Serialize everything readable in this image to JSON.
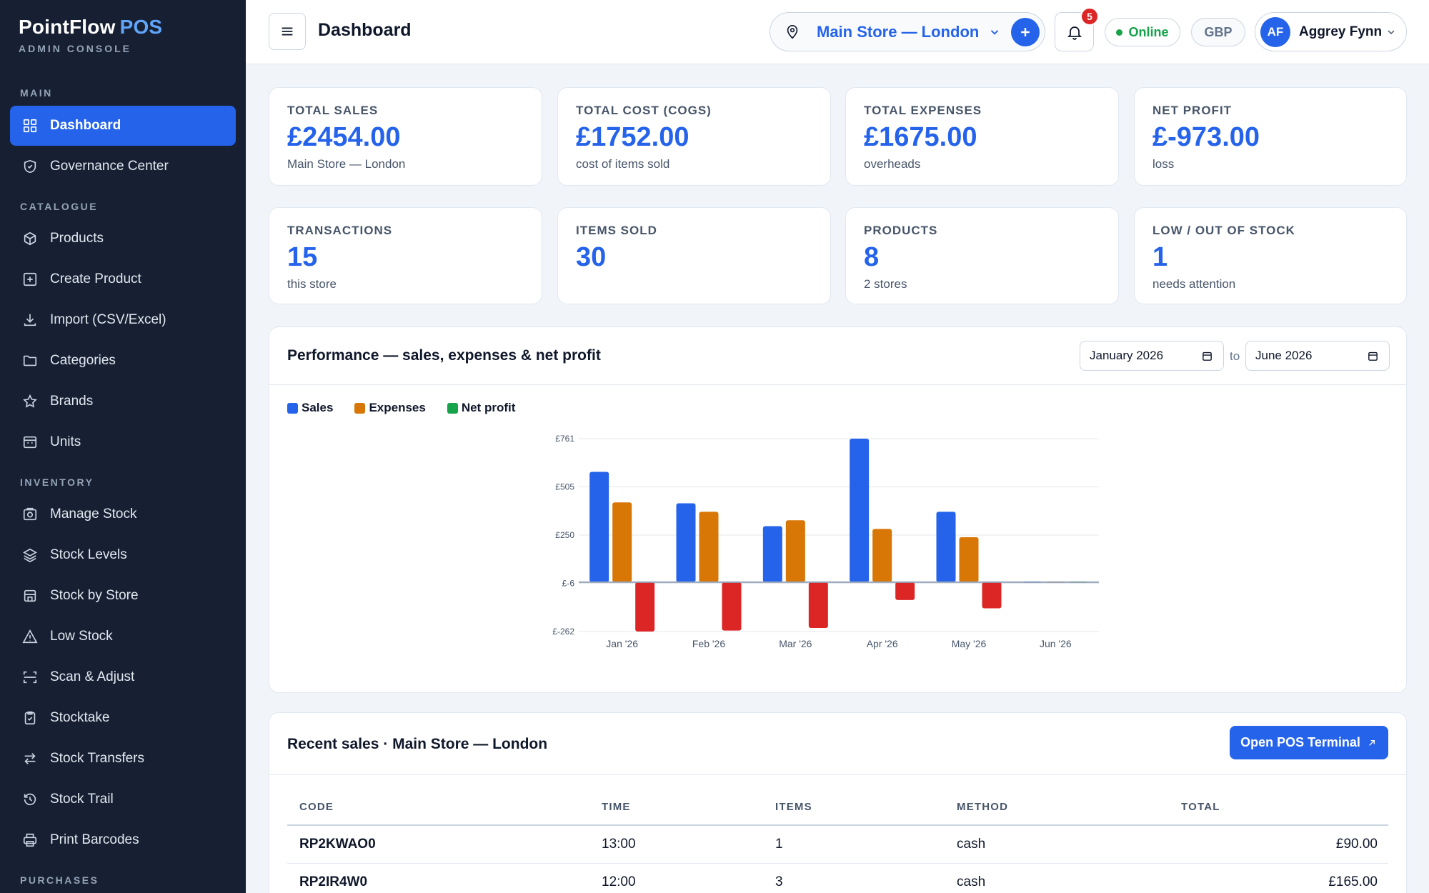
{
  "app": {
    "brand_name": "PointFlow",
    "brand_suffix": "POS",
    "brand_subtitle": "ADMIN CONSOLE"
  },
  "sidebar": {
    "sections": [
      "MAIN",
      "CATALOGUE",
      "INVENTORY",
      "PURCHASES"
    ],
    "items": [
      {
        "label": "Dashboard",
        "icon": "grid-icon",
        "active": true
      },
      {
        "label": "Governance Center",
        "icon": "shield-icon"
      },
      {
        "label": "Products",
        "icon": "box-icon"
      },
      {
        "label": "Create Product",
        "icon": "plus-square-icon"
      },
      {
        "label": "Import (CSV/Excel)",
        "icon": "download-icon"
      },
      {
        "label": "Categories",
        "icon": "folder-icon"
      },
      {
        "label": "Brands",
        "icon": "star-icon"
      },
      {
        "label": "Units",
        "icon": "calendar-icon"
      },
      {
        "label": "Manage Stock",
        "icon": "camera-icon"
      },
      {
        "label": "Stock Levels",
        "icon": "layers-icon"
      },
      {
        "label": "Stock by Store",
        "icon": "store-icon"
      },
      {
        "label": "Low Stock",
        "icon": "warning-icon"
      },
      {
        "label": "Scan & Adjust",
        "icon": "scan-icon"
      },
      {
        "label": "Stocktake",
        "icon": "clipboard-icon"
      },
      {
        "label": "Stock Transfers",
        "icon": "transfer-icon"
      },
      {
        "label": "Stock Trail",
        "icon": "history-icon"
      },
      {
        "label": "Print Barcodes",
        "icon": "printer-icon"
      }
    ]
  },
  "header": {
    "title": "Dashboard",
    "store": "Main Store — London",
    "notifications": "5",
    "status": "Online",
    "currency": "GBP",
    "user_initials": "AF",
    "user_name": "Aggrey Fynn"
  },
  "stats": [
    {
      "label": "TOTAL SALES",
      "value": "£2454.00",
      "sub": "Main Store — London"
    },
    {
      "label": "TOTAL COST (COGS)",
      "value": "£1752.00",
      "sub": "cost of items sold"
    },
    {
      "label": "TOTAL EXPENSES",
      "value": "£1675.00",
      "sub": "overheads"
    },
    {
      "label": "NET PROFIT",
      "value": "£-973.00",
      "sub": "loss"
    },
    {
      "label": "TRANSACTIONS",
      "value": "15",
      "sub": "this store"
    },
    {
      "label": "ITEMS SOLD",
      "value": "30",
      "sub": ""
    },
    {
      "label": "PRODUCTS",
      "value": "8",
      "sub": "2 stores"
    },
    {
      "label": "LOW / OUT OF STOCK",
      "value": "1",
      "sub": "needs attention"
    }
  ],
  "performance": {
    "title": "Performance — sales, expenses & net profit",
    "from": "January  2026",
    "to_label": "to",
    "to": "June  2026"
  },
  "chart_data": {
    "type": "bar",
    "categories": [
      "Jan '26",
      "Feb '26",
      "Mar '26",
      "Apr '26",
      "May '26",
      "Jun '26"
    ],
    "series": [
      {
        "name": "Sales",
        "color": "#2563eb",
        "values": [
          585,
          418,
          297,
          761,
          373,
          0
        ]
      },
      {
        "name": "Expenses",
        "color": "#d97706",
        "values": [
          423,
          373,
          328,
          282,
          238,
          0
        ]
      },
      {
        "name": "Net profit",
        "color": "#16a34a",
        "negative_color": "#dc2626",
        "values": [
          -262,
          -257,
          -243,
          -95,
          -139,
          0
        ]
      }
    ],
    "yticks": [
      "£761",
      "£505",
      "£250",
      "£-6",
      "£-262"
    ],
    "ylim": [
      -262,
      761
    ],
    "legend": "top-left",
    "grid": true
  },
  "recent_sales": {
    "title": "Recent sales · Main Store — London",
    "open_pos_label": "Open POS Terminal",
    "columns": [
      "CODE",
      "TIME",
      "ITEMS",
      "METHOD",
      "TOTAL"
    ],
    "rows": [
      {
        "code": "RP2KWAO0",
        "time": "13:00",
        "items": "1",
        "method": "cash",
        "total": "£90.00"
      },
      {
        "code": "RP2IR4W0",
        "time": "12:00",
        "items": "3",
        "method": "cash",
        "total": "£165.00"
      }
    ]
  }
}
